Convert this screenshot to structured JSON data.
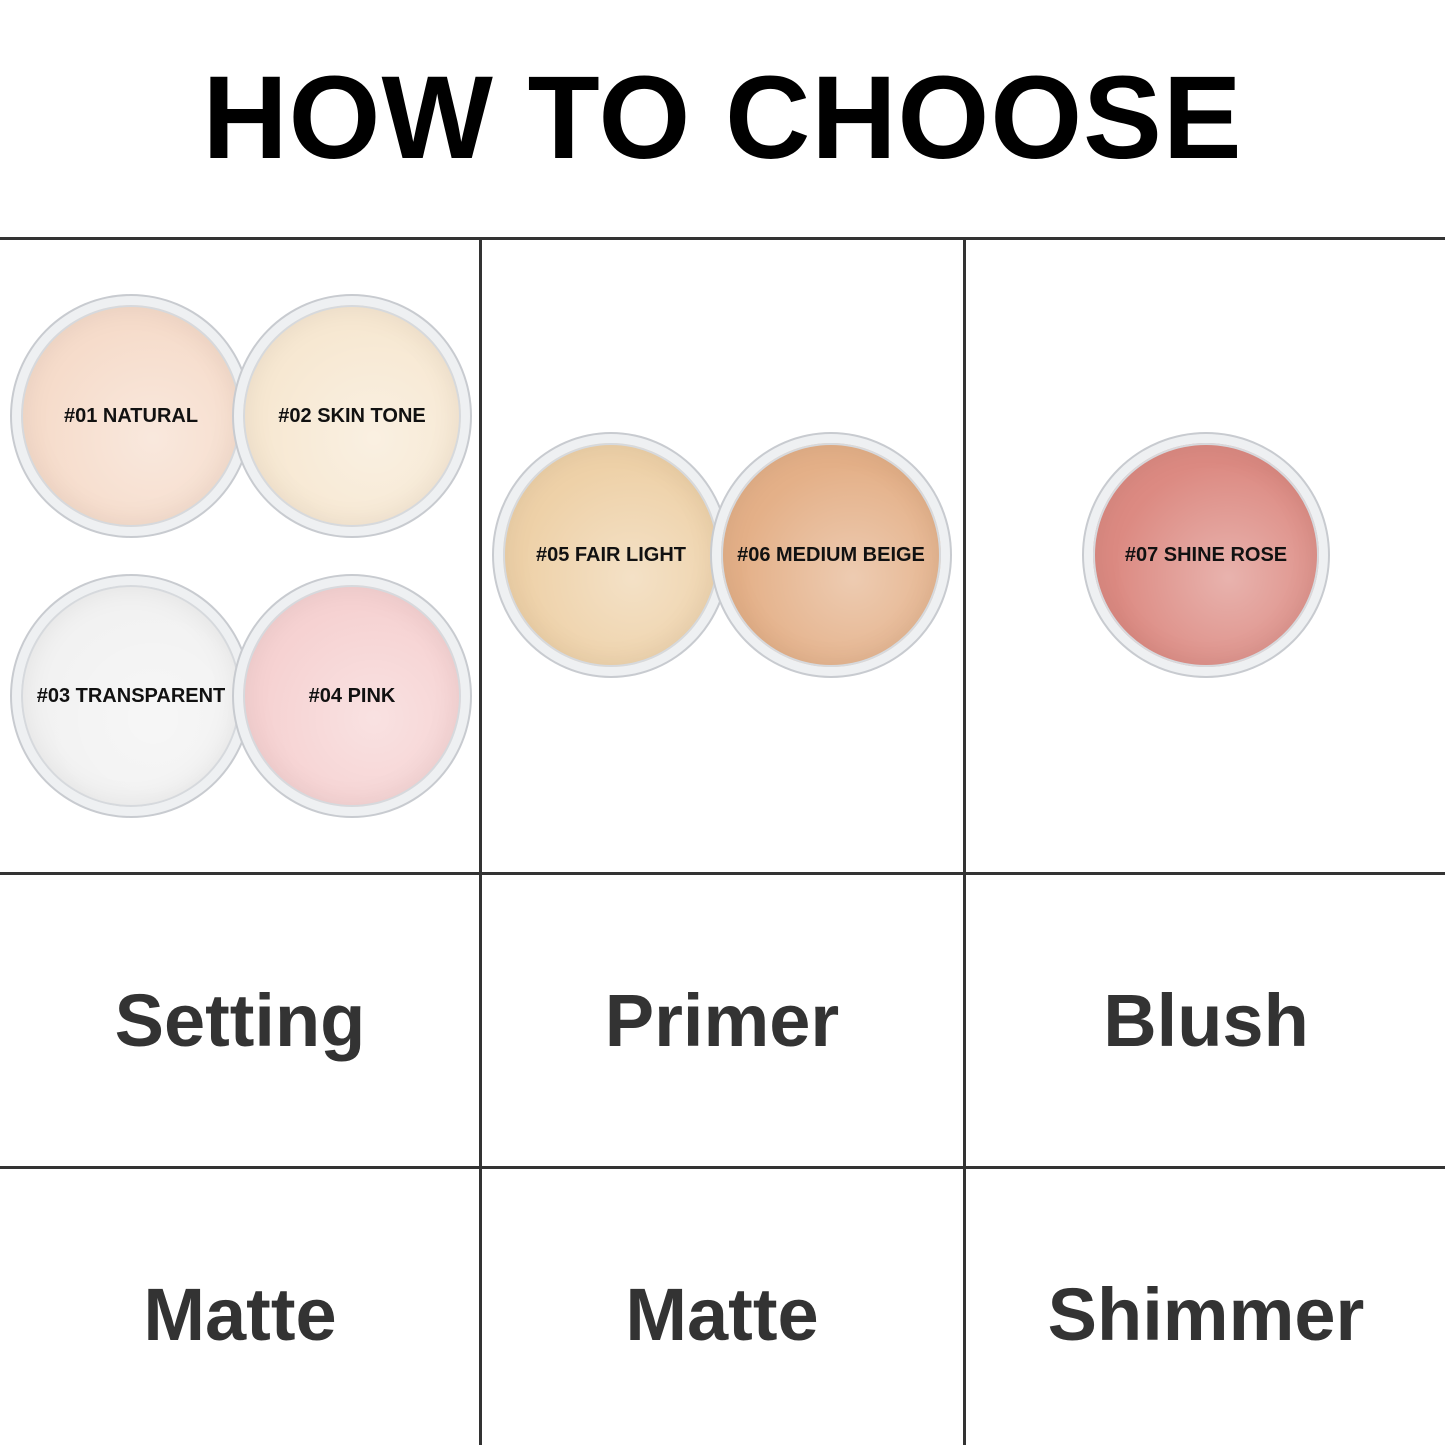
{
  "title": "HOW TO CHOOSE",
  "shades": [
    {
      "label": "#01 NATURAL",
      "color": "#f6dccb"
    },
    {
      "label": "#02 SKIN TONE",
      "color": "#f7e8d2"
    },
    {
      "label": "#03 TRANSPARENT",
      "color": "#f2f2f2"
    },
    {
      "label": "#04 PINK",
      "color": "#f6d2d2"
    },
    {
      "label": "#05 FAIR LIGHT",
      "color": "#eed1a8"
    },
    {
      "label": "#06 MEDIUM BEIGE",
      "color": "#e4b088"
    },
    {
      "label": "#07 SHINE ROSE",
      "color": "#dc8a82"
    }
  ],
  "uses": [
    "Setting",
    "Primer",
    "Blush"
  ],
  "finishes": [
    "Matte",
    "Matte",
    "Shimmer"
  ]
}
